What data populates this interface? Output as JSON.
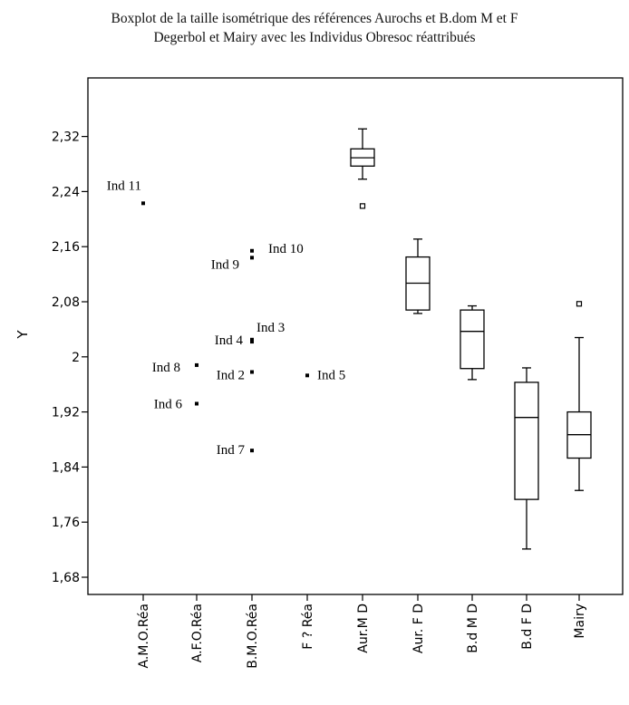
{
  "chart_data": {
    "type": "box",
    "title_lines": [
      "Boxplot de la taille isométrique des références Aurochs et B.dom M et F",
      "Degerbol et Mairy avec les Individus Obresoc réattribués"
    ],
    "ylabel": "Y",
    "xlabel": "",
    "ylim": [
      1.655,
      2.405
    ],
    "yticks": [
      {
        "value": 1.68,
        "label": "1,68"
      },
      {
        "value": 1.76,
        "label": "1,76"
      },
      {
        "value": 1.84,
        "label": "1,84"
      },
      {
        "value": 1.92,
        "label": "1,92"
      },
      {
        "value": 2.0,
        "label": "2"
      },
      {
        "value": 2.08,
        "label": "2,08"
      },
      {
        "value": 2.16,
        "label": "2,16"
      },
      {
        "value": 2.24,
        "label": "2,24"
      },
      {
        "value": 2.32,
        "label": "2,32"
      }
    ],
    "grid": false,
    "categories": [
      "A.M.O.Réa",
      "A.F.O.Réa",
      "B.M.O.Réa",
      "F ? Réa",
      "Aur.M D",
      "Aur. F D",
      "B.d M D",
      "B.d F D",
      "Mairy"
    ],
    "points": [
      {
        "category": "A.M.O.Réa",
        "value": 2.223,
        "label": "Ind 11"
      },
      {
        "category": "A.F.O.Réa",
        "value": 1.988,
        "label": "Ind 8"
      },
      {
        "category": "A.F.O.Réa",
        "value": 1.932,
        "label": "Ind 6"
      },
      {
        "category": "B.M.O.Réa",
        "value": 2.154,
        "label": "Ind 10"
      },
      {
        "category": "B.M.O.Réa",
        "value": 2.144,
        "label": "Ind 9"
      },
      {
        "category": "B.M.O.Réa",
        "value": 2.022,
        "label": "Ind 4"
      },
      {
        "category": "B.M.O.Réa",
        "value": 2.025,
        "label": "Ind 3"
      },
      {
        "category": "B.M.O.Réa",
        "value": 1.978,
        "label": "Ind 2"
      },
      {
        "category": "B.M.O.Réa",
        "value": 1.864,
        "label": "Ind 7"
      },
      {
        "category": "F ? Réa",
        "value": 1.973,
        "label": "Ind 5"
      }
    ],
    "boxes": [
      {
        "category": "Aur.M D",
        "whisker_low": 2.258,
        "q1": 2.277,
        "median": 2.289,
        "q3": 2.302,
        "whisker_high": 2.331,
        "outliers": [
          2.219
        ]
      },
      {
        "category": "Aur. F D",
        "whisker_low": 2.063,
        "q1": 2.068,
        "median": 2.107,
        "q3": 2.145,
        "whisker_high": 2.171,
        "outliers": []
      },
      {
        "category": "B.d M D",
        "whisker_low": 1.967,
        "q1": 1.983,
        "median": 2.037,
        "q3": 2.068,
        "whisker_high": 2.074,
        "outliers": []
      },
      {
        "category": "B.d F D",
        "whisker_low": 1.721,
        "q1": 1.793,
        "median": 1.912,
        "q3": 1.963,
        "whisker_high": 1.984,
        "outliers": []
      },
      {
        "category": "Mairy",
        "whisker_low": 1.806,
        "q1": 1.853,
        "median": 1.887,
        "q3": 1.92,
        "whisker_high": 2.028,
        "outliers": [
          2.077
        ]
      }
    ]
  }
}
